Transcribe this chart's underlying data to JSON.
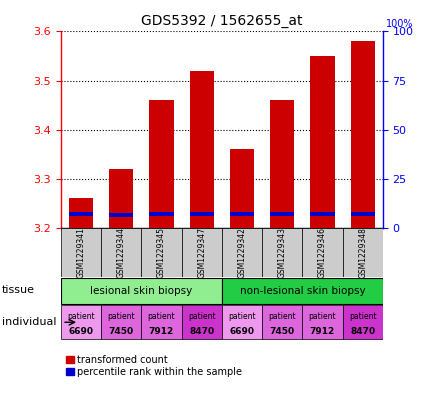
{
  "title": "GDS5392 / 1562655_at",
  "samples": [
    "GSM1229341",
    "GSM1229344",
    "GSM1229345",
    "GSM1229347",
    "GSM1229342",
    "GSM1229343",
    "GSM1229346",
    "GSM1229348"
  ],
  "red_values": [
    3.26,
    3.32,
    3.46,
    3.52,
    3.36,
    3.46,
    3.55,
    3.58
  ],
  "blue_values": [
    3.225,
    3.222,
    3.224,
    3.224,
    3.224,
    3.224,
    3.224,
    3.224
  ],
  "blue_bar_height": 0.008,
  "base": 3.2,
  "ylim_left": [
    3.2,
    3.6
  ],
  "ylim_right": [
    0,
    100
  ],
  "yticks_left": [
    3.2,
    3.3,
    3.4,
    3.5,
    3.6
  ],
  "yticks_right": [
    0,
    25,
    50,
    75,
    100
  ],
  "tissue_groups": [
    {
      "label": "lesional skin biopsy",
      "start": 0,
      "end": 4,
      "color": "#90EE90"
    },
    {
      "label": "non-lesional skin biopsy",
      "start": 4,
      "end": 8,
      "color": "#22CC44"
    }
  ],
  "individuals": [
    "6690",
    "7450",
    "7912",
    "8470",
    "6690",
    "7450",
    "7912",
    "8470"
  ],
  "ind_colors": [
    "#EE99EE",
    "#DD66DD",
    "#DD66DD",
    "#CC33CC",
    "#EE99EE",
    "#DD66DD",
    "#DD66DD",
    "#CC33CC"
  ],
  "bar_width": 0.6,
  "red_color": "#CC0000",
  "blue_color": "#0000CC",
  "left_axis_color": "red",
  "right_axis_color": "blue",
  "legend_red": "transformed count",
  "legend_blue": "percentile rank within the sample",
  "tissue_label": "tissue",
  "individual_label": "individual",
  "gsm_bg_color": "#CCCCCC"
}
